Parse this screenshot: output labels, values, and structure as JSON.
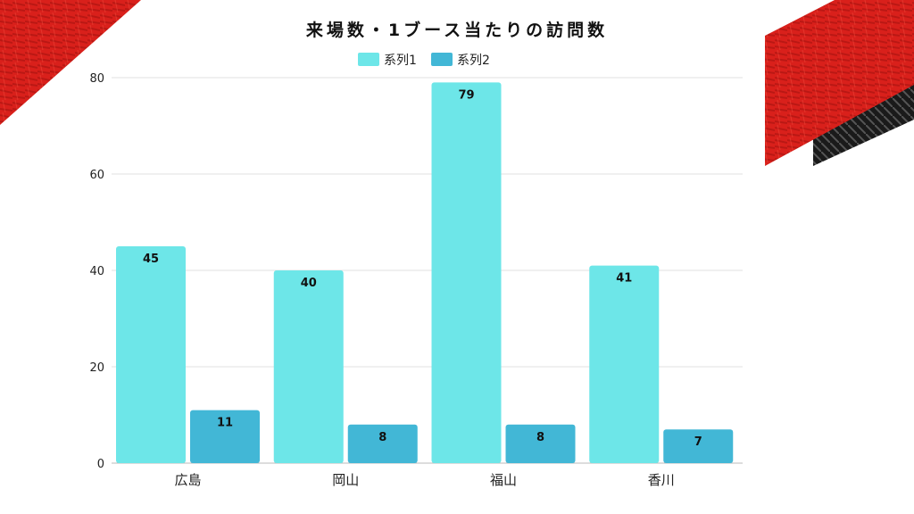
{
  "colors": {
    "series1": "#6de6e8",
    "series2": "#42b7d6",
    "accent": "#d9201b",
    "grid": "#e2e2e2"
  },
  "chart_data": {
    "type": "bar",
    "title": "来場数・1ブース当たりの訪問数",
    "categories": [
      "広島",
      "岡山",
      "福山",
      "香川"
    ],
    "series": [
      {
        "name": "系列1",
        "values": [
          45,
          40,
          79,
          41
        ]
      },
      {
        "name": "系列2",
        "values": [
          11,
          8,
          8,
          7
        ]
      }
    ],
    "yticks": [
      0,
      20,
      40,
      60,
      80
    ],
    "ylim": [
      0,
      80
    ],
    "grid": true,
    "legend": "top-center",
    "data_labels": true
  }
}
